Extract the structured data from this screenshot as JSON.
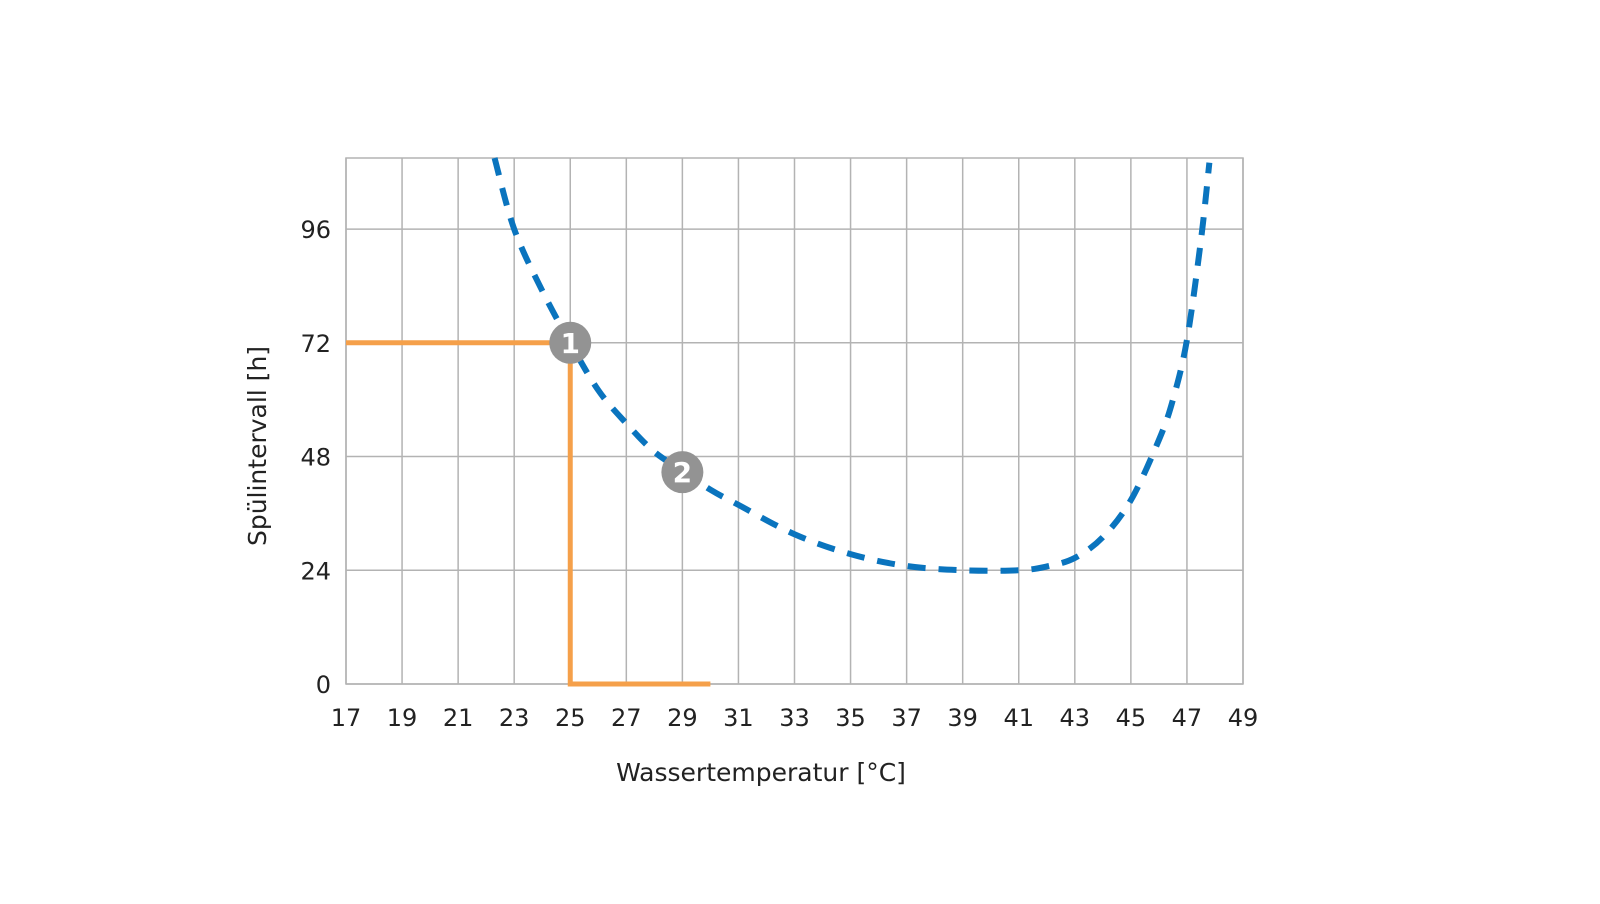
{
  "chart_data": {
    "type": "line",
    "title": "",
    "xlabel": "Wassertemperatur [°C]",
    "ylabel": "Spülintervall [h]",
    "xlim": [
      17,
      49
    ],
    "ylim": [
      0,
      111
    ],
    "xticks": [
      17,
      19,
      21,
      23,
      25,
      27,
      29,
      31,
      33,
      35,
      37,
      39,
      41,
      43,
      45,
      47,
      49
    ],
    "yticks": [
      0,
      24,
      48,
      72,
      96
    ],
    "grid": true,
    "series": [
      {
        "style": "dashed",
        "color": "#0a74be",
        "x": [
          22.3,
          23,
          24,
          25,
          26,
          27,
          28,
          29,
          30,
          31,
          33,
          35,
          37,
          39,
          41,
          42,
          43,
          44,
          45,
          46,
          46.5,
          47,
          47.5,
          47.8
        ],
        "y": [
          111,
          96,
          83,
          72,
          62,
          55,
          49,
          45,
          41,
          37.8,
          31.6,
          27.4,
          24.9,
          24,
          24,
          24.8,
          26.6,
          31,
          38.8,
          51.5,
          60,
          72.6,
          93.7,
          110
        ]
      },
      {
        "style": "solid",
        "color": "#f5a04a",
        "x": [
          17,
          25,
          25,
          30
        ],
        "y": [
          72,
          72,
          0,
          0
        ]
      }
    ],
    "markers": [
      {
        "label": "1",
        "x": 25,
        "y": 72,
        "color": "#939393"
      },
      {
        "label": "2",
        "x": 29,
        "y": 44.7,
        "color": "#939393"
      }
    ]
  }
}
